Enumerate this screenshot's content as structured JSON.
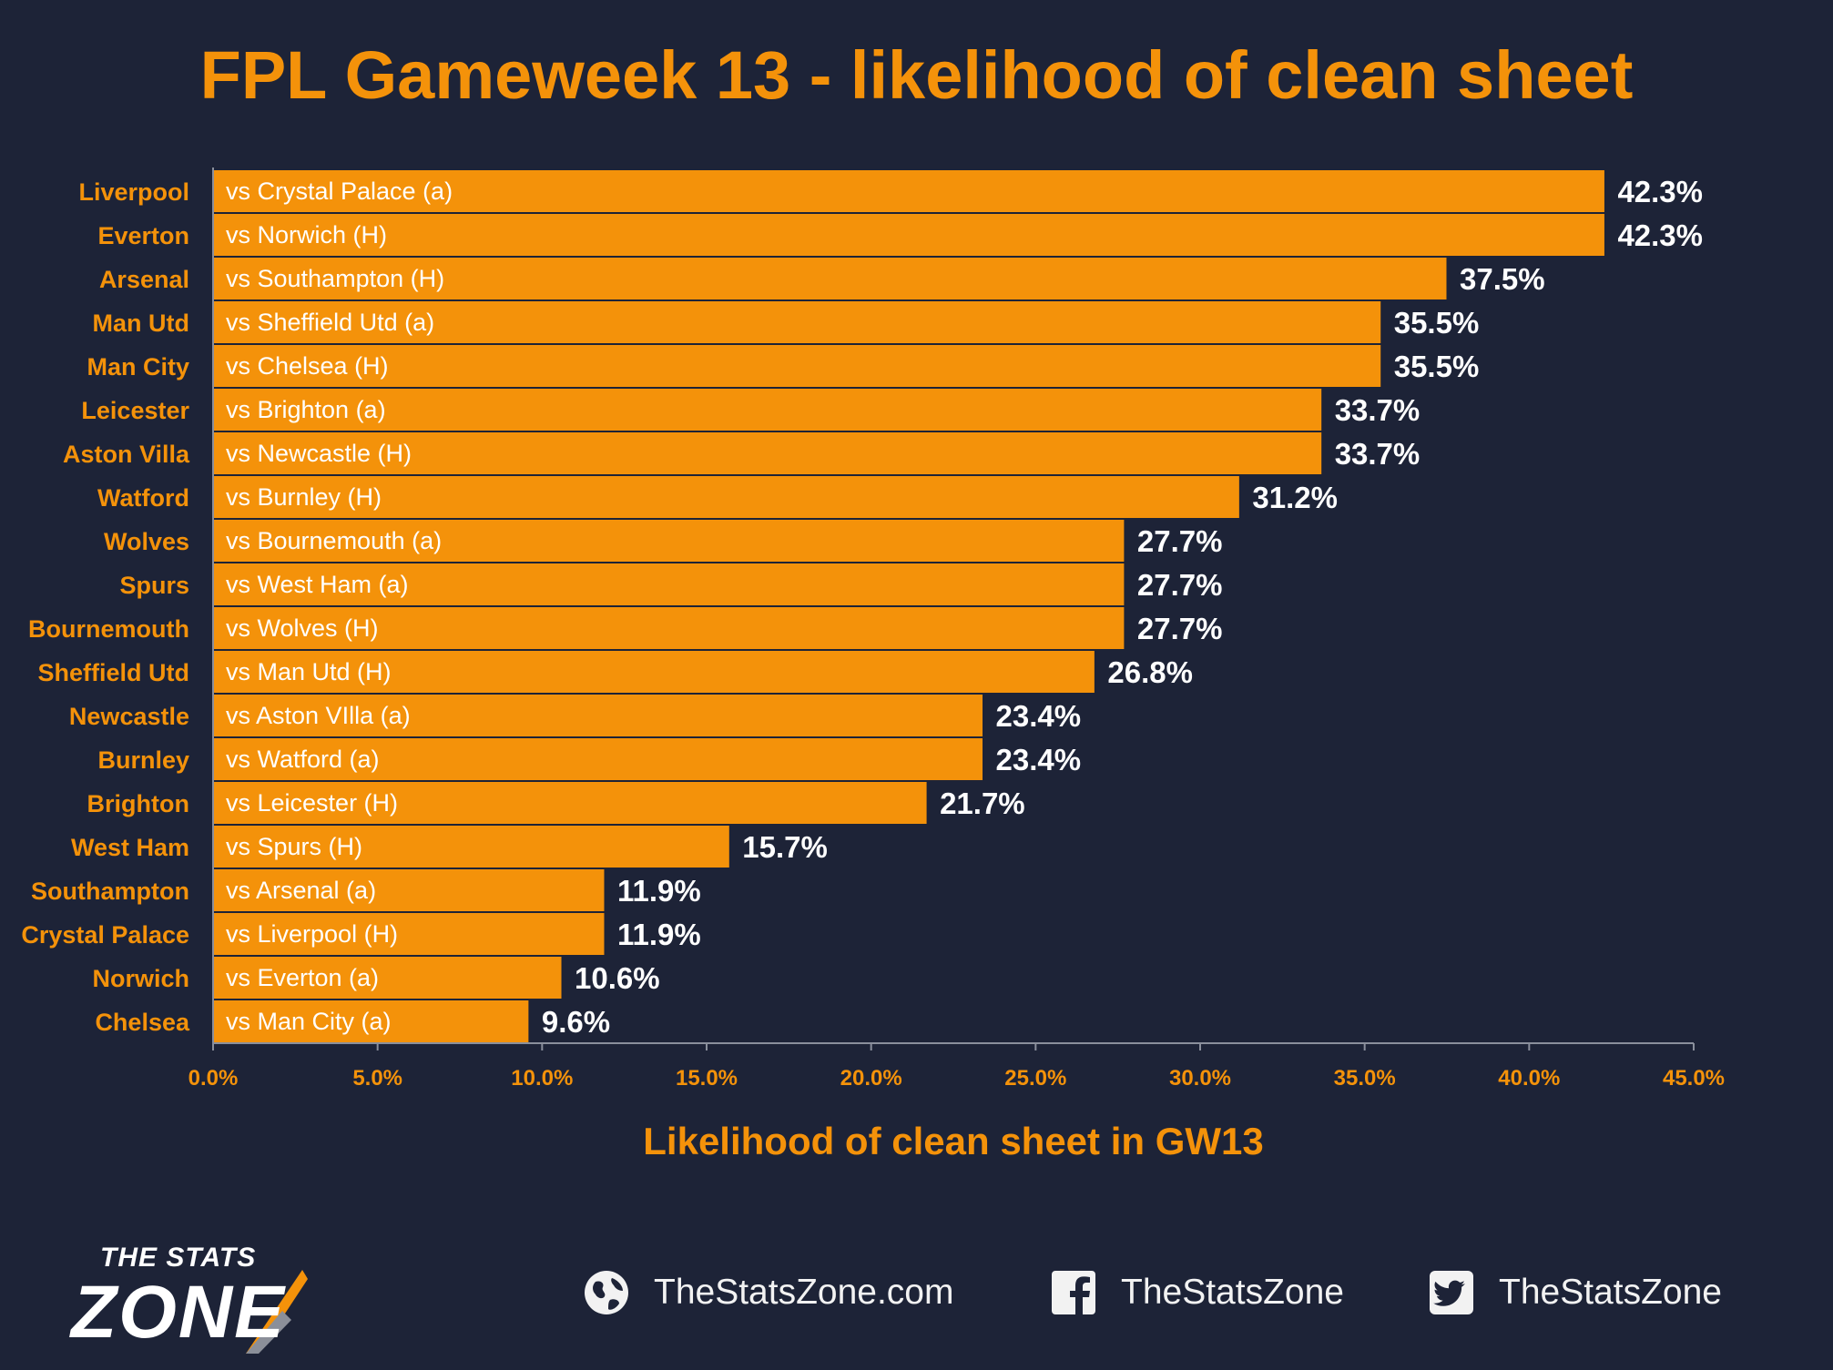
{
  "chart_data": {
    "type": "bar",
    "orientation": "horizontal",
    "title": "FPL Gameweek 13 - likelihood of clean sheet",
    "xlabel": "Likelihood of clean sheet in GW13",
    "ylabel": "",
    "xlim": [
      0,
      45
    ],
    "x_ticks": [
      "0.0%",
      "5.0%",
      "10.0%",
      "15.0%",
      "20.0%",
      "25.0%",
      "30.0%",
      "35.0%",
      "40.0%",
      "45.0%"
    ],
    "grid": false,
    "colors": {
      "bar": "#f4920a",
      "background": "#1d2337",
      "label": "#f4920a",
      "value": "#ffffff"
    },
    "categories": [
      "Liverpool",
      "Everton",
      "Arsenal",
      "Man Utd",
      "Man City",
      "Leicester",
      "Aston Villa",
      "Watford",
      "Wolves",
      "Spurs",
      "Bournemouth",
      "Sheffield Utd",
      "Newcastle",
      "Burnley",
      "Brighton",
      "West Ham",
      "Southampton",
      "Crystal Palace",
      "Norwich",
      "Chelsea"
    ],
    "fixtures": [
      "vs Crystal Palace (a)",
      "vs Norwich (H)",
      "vs Southampton (H)",
      "vs Sheffield Utd (a)",
      "vs Chelsea (H)",
      "vs Brighton (a)",
      "vs Newcastle (H)",
      "vs Burnley (H)",
      "vs Bournemouth (a)",
      "vs West Ham (a)",
      "vs Wolves (H)",
      "vs Man Utd (H)",
      "vs Aston VIlla (a)",
      "vs Watford (a)",
      "vs Leicester (H)",
      "vs Spurs (H)",
      "vs Arsenal (a)",
      "vs Liverpool (H)",
      "vs Everton (a)",
      "vs Man City (a)"
    ],
    "values": [
      42.3,
      42.3,
      37.5,
      35.5,
      35.5,
      33.7,
      33.7,
      31.2,
      27.7,
      27.7,
      27.7,
      26.8,
      23.4,
      23.4,
      21.7,
      15.7,
      11.9,
      11.9,
      10.6,
      9.6
    ],
    "value_labels": [
      "42.3%",
      "42.3%",
      "37.5%",
      "35.5%",
      "35.5%",
      "33.7%",
      "33.7%",
      "31.2%",
      "27.7%",
      "27.7%",
      "27.7%",
      "26.8%",
      "23.4%",
      "23.4%",
      "21.7%",
      "15.7%",
      "11.9%",
      "11.9%",
      "10.6%",
      "9.6%"
    ]
  },
  "footer": {
    "logo_line1": "THE STATS",
    "logo_line2": "ZONE",
    "website": "TheStatsZone.com",
    "facebook": "TheStatsZone",
    "twitter": "TheStatsZone",
    "icons": [
      "globe-icon",
      "facebook-icon",
      "twitter-icon"
    ]
  }
}
